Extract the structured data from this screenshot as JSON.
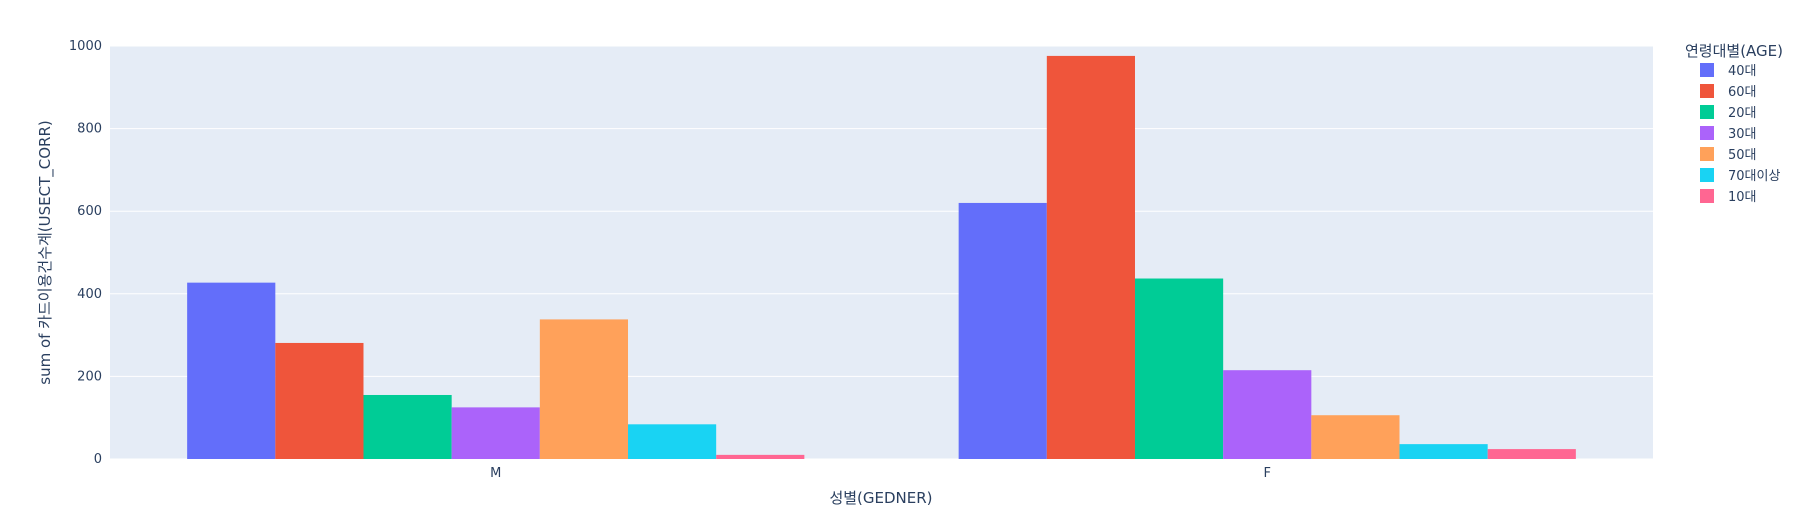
{
  "chart_data": {
    "type": "bar",
    "barmode": "group",
    "categories": [
      "M",
      "F"
    ],
    "xlabel": "성별(GEDNER)",
    "ylabel": "sum of 카드이용건수계(USECT_CORR)",
    "ylim": [
      0,
      1000
    ],
    "yticks": [
      0,
      200,
      400,
      600,
      800,
      1000
    ],
    "grid": true,
    "legend_title": "연령대별(AGE)",
    "legend_position": "right",
    "plot_background": "#e5ecf6",
    "series": [
      {
        "name": "40대",
        "color": "#636efa",
        "values": [
          427,
          620
        ]
      },
      {
        "name": "60대",
        "color": "#ef553b",
        "values": [
          281,
          976
        ]
      },
      {
        "name": "20대",
        "color": "#00cc96",
        "values": [
          155,
          437
        ]
      },
      {
        "name": "30대",
        "color": "#ab63fa",
        "values": [
          125,
          215
        ]
      },
      {
        "name": "50대",
        "color": "#ffa15a",
        "values": [
          338,
          106
        ]
      },
      {
        "name": "70대이상",
        "color": "#19d3f3",
        "values": [
          84,
          36
        ]
      },
      {
        "name": "10대",
        "color": "#ff6692",
        "values": [
          10,
          24
        ]
      }
    ]
  }
}
